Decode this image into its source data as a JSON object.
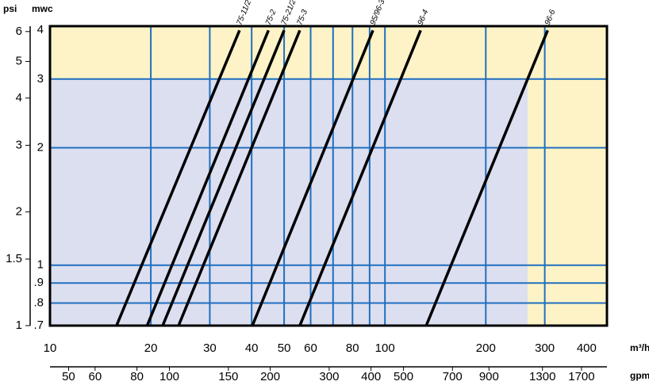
{
  "chart_data": {
    "type": "line",
    "y_label": "mwc",
    "y2_label": "psi",
    "x_label": "m³/h",
    "x2_label": "gpm",
    "log_x": true,
    "log_y": true,
    "xlim": [
      10,
      460
    ],
    "xticks": [
      10,
      20,
      30,
      40,
      50,
      60,
      80,
      100,
      200,
      300,
      400
    ],
    "xgrid": [
      20,
      30,
      40,
      50,
      60,
      70,
      80,
      90,
      100,
      200,
      300
    ],
    "x2lim": [
      44,
      2025
    ],
    "x2ticks": [
      50,
      60,
      80,
      100,
      150,
      200,
      300,
      400,
      500,
      700,
      900,
      1300,
      1700
    ],
    "ylim": [
      0.7,
      4.1
    ],
    "yticks": [
      4,
      3,
      2,
      1,
      {
        "value": 0.9,
        "label": ".9"
      },
      {
        "value": 0.8,
        "label": ".8"
      },
      {
        "value": 0.7,
        "label": ".7"
      }
    ],
    "ygrid": [
      3,
      2,
      1,
      0.9,
      0.8
    ],
    "y2lim": [
      1,
      6.2
    ],
    "y2ticks": [
      6,
      5,
      4,
      3,
      2,
      1.5,
      1
    ],
    "grid_color": "#1f6fbf",
    "line_color": "#000000",
    "series": [
      {
        "name": "75-11/2",
        "x": [
          15.8,
          36.8
        ],
        "values": [
          0.7,
          4
        ]
      },
      {
        "name": "75-2",
        "x": [
          19.5,
          44.9
        ],
        "values": [
          0.7,
          4
        ]
      },
      {
        "name": "75-21/2",
        "x": [
          21.7,
          50.0
        ],
        "values": [
          0.7,
          4
        ]
      },
      {
        "name": "75-3",
        "x": [
          24.2,
          55.7
        ],
        "values": [
          0.7,
          4
        ]
      },
      {
        "name": "95/96-3",
        "x": [
          40.2,
          92.1
        ],
        "values": [
          0.7,
          4
        ]
      },
      {
        "name": "96-4",
        "x": [
          55.7,
          127.8
        ],
        "values": [
          0.7,
          4
        ]
      },
      {
        "name": "96-6",
        "x": [
          132.8,
          306
        ],
        "values": [
          0.7,
          4
        ]
      }
    ]
  }
}
